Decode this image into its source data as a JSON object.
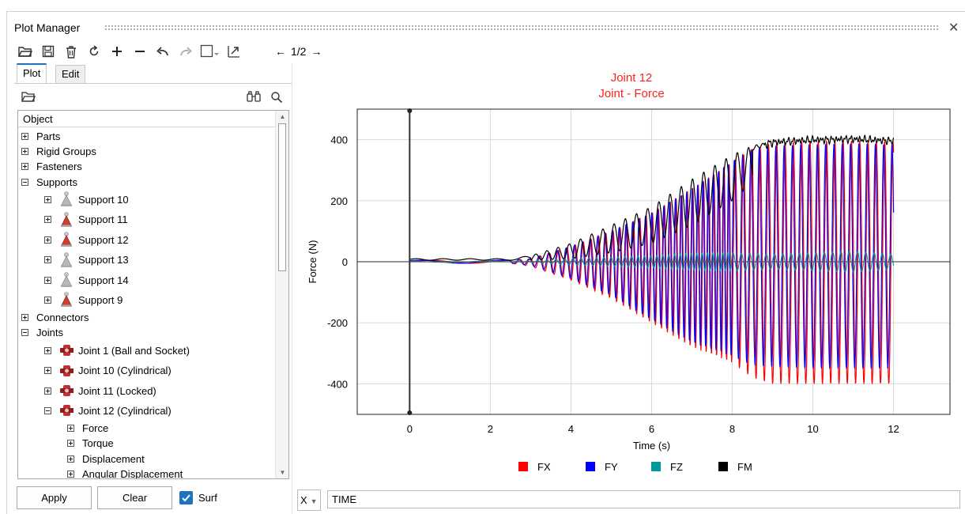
{
  "window": {
    "title": "Plot Manager"
  },
  "toolbar": {
    "icons": [
      "open-folder-icon",
      "save-icon",
      "delete-icon",
      "refresh-icon",
      "add-icon",
      "remove-icon",
      "undo-icon",
      "redo-icon",
      "selection-box-icon",
      "dropdown-icon",
      "export-icon"
    ],
    "pager": {
      "prev": "←",
      "page": "1/2",
      "next": "→"
    }
  },
  "tabs": [
    {
      "label": "Plot",
      "active": true
    },
    {
      "label": "Edit",
      "active": false
    }
  ],
  "tree": {
    "header": "Object",
    "rows": [
      {
        "label": "Parts",
        "indent": 0,
        "expanded": false,
        "icon": ""
      },
      {
        "label": "Rigid Groups",
        "indent": 0,
        "expanded": false,
        "icon": ""
      },
      {
        "label": "Fasteners",
        "indent": 0,
        "expanded": false,
        "icon": ""
      },
      {
        "label": "Supports",
        "indent": 0,
        "expanded": true,
        "icon": ""
      },
      {
        "label": "Support 10",
        "indent": 1,
        "expanded": false,
        "icon": "support-grey-icon"
      },
      {
        "label": "Support 11",
        "indent": 1,
        "expanded": false,
        "icon": "support-red-icon"
      },
      {
        "label": "Support 12",
        "indent": 1,
        "expanded": false,
        "icon": "support-red-icon"
      },
      {
        "label": "Support 13",
        "indent": 1,
        "expanded": false,
        "icon": "support-grey-icon"
      },
      {
        "label": "Support 14",
        "indent": 1,
        "expanded": false,
        "icon": "support-grey-icon"
      },
      {
        "label": "Support 9",
        "indent": 1,
        "expanded": false,
        "icon": "support-red-icon"
      },
      {
        "label": "Connectors",
        "indent": 0,
        "expanded": false,
        "icon": ""
      },
      {
        "label": "Joints",
        "indent": 0,
        "expanded": true,
        "icon": ""
      },
      {
        "label": "Joint 1 (Ball and Socket)",
        "indent": 1,
        "expanded": false,
        "icon": "joint-icon"
      },
      {
        "label": "Joint 10 (Cylindrical)",
        "indent": 1,
        "expanded": false,
        "icon": "joint-icon"
      },
      {
        "label": "Joint 11 (Locked)",
        "indent": 1,
        "expanded": false,
        "icon": "joint-icon"
      },
      {
        "label": "Joint 12 (Cylindrical)",
        "indent": 1,
        "expanded": true,
        "icon": "joint-icon"
      },
      {
        "label": "Force",
        "indent": 2,
        "expanded": false,
        "icon": ""
      },
      {
        "label": "Torque",
        "indent": 2,
        "expanded": false,
        "icon": ""
      },
      {
        "label": "Displacement",
        "indent": 2,
        "expanded": false,
        "icon": ""
      },
      {
        "label": "Angular Displacement",
        "indent": 2,
        "expanded": false,
        "icon": ""
      }
    ]
  },
  "buttons": {
    "apply": "Apply",
    "clear": "Clear",
    "surf": "Surf"
  },
  "surf_checked": true,
  "x_selector": {
    "value": "X"
  },
  "x_expression": {
    "value": "TIME"
  },
  "colors": {
    "accent": "#1e73be",
    "title": "#ff2020",
    "FX": "#ff0000",
    "FY": "#0000ff",
    "FZ": "#009999",
    "FM": "#000000"
  },
  "chart_data": {
    "type": "line",
    "title": "Joint 12",
    "subtitle": "Joint - Force",
    "xlabel": "Time (s)",
    "ylabel": "Force (N)",
    "xlim": [
      -1.3,
      13.4
    ],
    "ylim": [
      -500,
      500
    ],
    "xticks": [
      0,
      2,
      4,
      6,
      8,
      10,
      12
    ],
    "yticks": [
      -400,
      -200,
      0,
      200,
      400
    ],
    "grid": true,
    "legend": "bottom",
    "series": [
      {
        "name": "FX",
        "color": "#ff0000",
        "envelope": {
          "t": [
            0,
            2.5,
            3,
            4,
            5,
            6,
            7,
            8,
            8.5,
            9,
            10,
            11,
            12
          ],
          "max": [
            5,
            5,
            10,
            50,
            100,
            160,
            240,
            330,
            370,
            390,
            395,
            398,
            395
          ],
          "min": [
            -5,
            -5,
            -15,
            -60,
            -120,
            -200,
            -280,
            -330,
            -380,
            -400,
            -400,
            -400,
            -400
          ]
        }
      },
      {
        "name": "FY",
        "color": "#0000ff",
        "envelope": {
          "t": [
            0,
            2.5,
            3,
            4,
            5,
            6,
            7,
            8,
            8.5,
            9,
            10,
            11,
            12
          ],
          "max": [
            5,
            5,
            10,
            50,
            100,
            160,
            240,
            330,
            370,
            380,
            385,
            388,
            385
          ],
          "min": [
            -5,
            -5,
            -12,
            -55,
            -110,
            -190,
            -265,
            -310,
            -340,
            -345,
            -350,
            -350,
            -350
          ]
        }
      },
      {
        "name": "FZ",
        "color": "#009999",
        "envelope": {
          "t": [
            0,
            2.5,
            3,
            4,
            5,
            6,
            7,
            8,
            9,
            10,
            11,
            12
          ],
          "max": [
            2,
            2,
            3,
            10,
            15,
            20,
            28,
            30,
            25,
            30,
            35,
            25
          ],
          "min": [
            -2,
            -2,
            -3,
            -10,
            -15,
            -20,
            -28,
            -30,
            -25,
            -30,
            -35,
            -25
          ]
        }
      },
      {
        "name": "FM",
        "color": "#000000",
        "envelope": {
          "t": [
            0,
            2.5,
            3,
            4,
            5,
            6,
            7,
            8,
            8.5,
            9,
            10,
            11,
            12
          ],
          "max": [
            10,
            10,
            20,
            60,
            120,
            180,
            270,
            350,
            380,
            395,
            402,
            405,
            398
          ],
          "min": [
            5,
            5,
            5,
            10,
            30,
            60,
            120,
            200,
            260,
            330,
            350,
            355,
            360
          ]
        }
      }
    ]
  }
}
